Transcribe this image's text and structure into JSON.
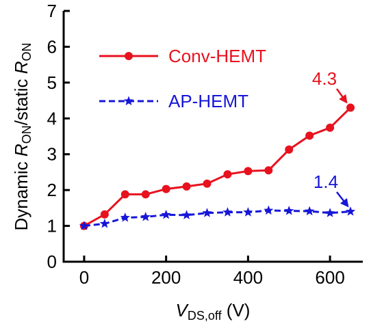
{
  "chart_data": {
    "type": "line",
    "xlabel": {
      "main": "V",
      "sub": "DS,off",
      "unit": " (V)"
    },
    "ylabel": {
      "p1": "Dynamic ",
      "r1": "R",
      "s1": "ON",
      "p2": "/static ",
      "r2": "R",
      "s2": "ON"
    },
    "xlim": [
      -50,
      680
    ],
    "ylim": [
      0,
      7
    ],
    "xticks": [
      0,
      200,
      400,
      600
    ],
    "yticks": [
      0,
      1,
      2,
      3,
      4,
      5,
      6,
      7
    ],
    "grid": false,
    "legend_position": "top-left",
    "series": [
      {
        "name": "Conv-HEMT",
        "color": "#e8111e",
        "marker": "circle",
        "dash": "solid",
        "x": [
          0,
          50,
          100,
          150,
          200,
          250,
          300,
          350,
          400,
          450,
          500,
          550,
          600,
          650
        ],
        "y": [
          1.0,
          1.32,
          1.88,
          1.88,
          2.03,
          2.1,
          2.18,
          2.44,
          2.53,
          2.55,
          3.13,
          3.52,
          3.74,
          4.3
        ]
      },
      {
        "name": "AP-HEMT",
        "color": "#1616d8",
        "marker": "star",
        "dash": "dashed",
        "x": [
          0,
          50,
          100,
          150,
          200,
          250,
          300,
          350,
          400,
          450,
          500,
          550,
          600,
          650
        ],
        "y": [
          1.0,
          1.06,
          1.23,
          1.25,
          1.31,
          1.3,
          1.36,
          1.38,
          1.38,
          1.43,
          1.42,
          1.41,
          1.36,
          1.4
        ]
      }
    ],
    "annotations": [
      {
        "text": "4.3",
        "color": "#e8111e",
        "series": 0
      },
      {
        "text": "1.4",
        "color": "#1616d8",
        "series": 1
      }
    ]
  }
}
